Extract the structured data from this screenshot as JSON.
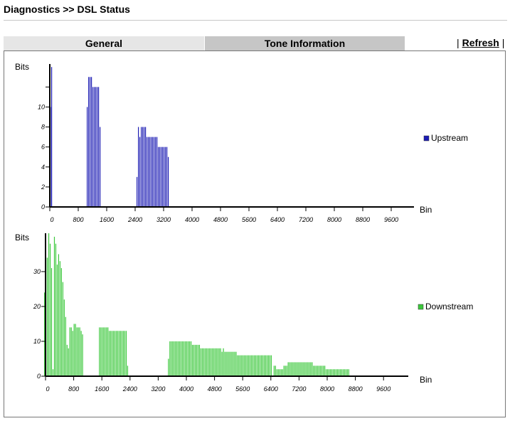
{
  "page_title": "Diagnostics >> DSL Status",
  "tabs": [
    {
      "label": "General",
      "active": false
    },
    {
      "label": "Tone Information",
      "active": true
    }
  ],
  "refresh": {
    "label": "Refresh",
    "sep_left": "|",
    "sep_right": "|"
  },
  "colors": {
    "upstream": "#1c1cb4",
    "downstream": "#3cc83c",
    "axis": "#000000"
  },
  "chart_data": [
    {
      "type": "bar",
      "title": "",
      "ylabel": "Bits",
      "xlabel": "Bin",
      "legend": "Upstream",
      "legend_position": "right",
      "xlim": [
        0,
        10000
      ],
      "ylim": [
        0,
        14.3
      ],
      "x_ticks": [
        0,
        800,
        1600,
        2400,
        3200,
        4000,
        4800,
        5600,
        6400,
        7200,
        8000,
        8800,
        9600
      ],
      "y_ticks": [
        0,
        2,
        4,
        6,
        8,
        10,
        12
      ],
      "y_tick_labels": [
        "0",
        "2",
        "4",
        "6",
        "8",
        "10",
        ""
      ],
      "bin_width": 40,
      "series": [
        {
          "name": "Upstream",
          "bars": [
            [
              5,
              10
            ],
            [
              40,
              14
            ],
            [
              1040,
              10
            ],
            [
              1080,
              13
            ],
            [
              1120,
              13
            ],
            [
              1160,
              13
            ],
            [
              1200,
              12
            ],
            [
              1240,
              12
            ],
            [
              1280,
              12
            ],
            [
              1320,
              12
            ],
            [
              1360,
              12
            ],
            [
              1400,
              8
            ],
            [
              2440,
              3
            ],
            [
              2480,
              8
            ],
            [
              2520,
              7
            ],
            [
              2560,
              8
            ],
            [
              2600,
              8
            ],
            [
              2640,
              8
            ],
            [
              2680,
              8
            ],
            [
              2720,
              7
            ],
            [
              2760,
              7
            ],
            [
              2800,
              7
            ],
            [
              2840,
              7
            ],
            [
              2880,
              7
            ],
            [
              2920,
              7
            ],
            [
              2960,
              7
            ],
            [
              3000,
              7
            ],
            [
              3040,
              6
            ],
            [
              3080,
              6
            ],
            [
              3120,
              6
            ],
            [
              3160,
              6
            ],
            [
              3200,
              6
            ],
            [
              3240,
              6
            ],
            [
              3280,
              6
            ],
            [
              3320,
              5
            ]
          ]
        }
      ]
    },
    {
      "type": "bar",
      "title": "",
      "ylabel": "Bits",
      "xlabel": "Bin",
      "legend": "Downstream",
      "legend_position": "right",
      "xlim": [
        0,
        10000
      ],
      "ylim": [
        0,
        41
      ],
      "x_ticks": [
        0,
        800,
        1600,
        2400,
        3200,
        4000,
        4800,
        5600,
        6400,
        7200,
        8000,
        8800,
        9600
      ],
      "y_ticks": [
        0,
        10,
        20,
        30
      ],
      "bin_width": 40,
      "series": [
        {
          "name": "Downstream",
          "bars": [
            [
              -40,
              24
            ],
            [
              0,
              34
            ],
            [
              40,
              34
            ],
            [
              80,
              41
            ],
            [
              120,
              38
            ],
            [
              160,
              31
            ],
            [
              200,
              2
            ],
            [
              240,
              40
            ],
            [
              280,
              38
            ],
            [
              320,
              32
            ],
            [
              360,
              35
            ],
            [
              400,
              33
            ],
            [
              440,
              31
            ],
            [
              480,
              27
            ],
            [
              520,
              22
            ],
            [
              560,
              17
            ],
            [
              600,
              9
            ],
            [
              640,
              8
            ],
            [
              680,
              14
            ],
            [
              720,
              14
            ],
            [
              760,
              13
            ],
            [
              800,
              15
            ],
            [
              840,
              15
            ],
            [
              880,
              14
            ],
            [
              920,
              14
            ],
            [
              960,
              14
            ],
            [
              1000,
              13
            ],
            [
              1040,
              12
            ],
            [
              1520,
              14
            ],
            [
              1560,
              14
            ],
            [
              1600,
              14
            ],
            [
              1640,
              14
            ],
            [
              1680,
              14
            ],
            [
              1720,
              14
            ],
            [
              1760,
              14
            ],
            [
              1800,
              13
            ],
            [
              1840,
              13
            ],
            [
              1880,
              13
            ],
            [
              1920,
              13
            ],
            [
              1960,
              13
            ],
            [
              2000,
              13
            ],
            [
              2040,
              13
            ],
            [
              2080,
              13
            ],
            [
              2120,
              13
            ],
            [
              2160,
              13
            ],
            [
              2200,
              13
            ],
            [
              2240,
              13
            ],
            [
              2280,
              13
            ],
            [
              2320,
              3
            ],
            [
              3480,
              5
            ],
            [
              3520,
              10
            ],
            [
              3560,
              10
            ],
            [
              3600,
              10
            ],
            [
              3640,
              10
            ],
            [
              3680,
              10
            ],
            [
              3720,
              10
            ],
            [
              3760,
              10
            ],
            [
              3800,
              10
            ],
            [
              3840,
              10
            ],
            [
              3880,
              10
            ],
            [
              3920,
              10
            ],
            [
              3960,
              10
            ],
            [
              4000,
              10
            ],
            [
              4040,
              10
            ],
            [
              4080,
              10
            ],
            [
              4120,
              10
            ],
            [
              4160,
              9
            ],
            [
              4200,
              9
            ],
            [
              4240,
              9
            ],
            [
              4280,
              9
            ],
            [
              4320,
              9
            ],
            [
              4360,
              9
            ],
            [
              4400,
              8
            ],
            [
              4440,
              8
            ],
            [
              4480,
              8
            ],
            [
              4520,
              8
            ],
            [
              4560,
              8
            ],
            [
              4600,
              8
            ],
            [
              4640,
              8
            ],
            [
              4680,
              8
            ],
            [
              4720,
              8
            ],
            [
              4760,
              8
            ],
            [
              4800,
              8
            ],
            [
              4840,
              8
            ],
            [
              4880,
              8
            ],
            [
              4920,
              8
            ],
            [
              4960,
              8
            ],
            [
              5000,
              7
            ],
            [
              5040,
              8
            ],
            [
              5080,
              7
            ],
            [
              5120,
              7
            ],
            [
              5160,
              7
            ],
            [
              5200,
              7
            ],
            [
              5240,
              7
            ],
            [
              5280,
              7
            ],
            [
              5320,
              7
            ],
            [
              5360,
              7
            ],
            [
              5400,
              7
            ],
            [
              5440,
              6
            ],
            [
              5480,
              6
            ],
            [
              5520,
              6
            ],
            [
              5560,
              6
            ],
            [
              5600,
              6
            ],
            [
              5640,
              6
            ],
            [
              5680,
              6
            ],
            [
              5720,
              6
            ],
            [
              5760,
              6
            ],
            [
              5800,
              6
            ],
            [
              5840,
              6
            ],
            [
              5880,
              6
            ],
            [
              5920,
              6
            ],
            [
              5960,
              6
            ],
            [
              6000,
              6
            ],
            [
              6040,
              6
            ],
            [
              6080,
              6
            ],
            [
              6120,
              6
            ],
            [
              6160,
              6
            ],
            [
              6200,
              6
            ],
            [
              6240,
              6
            ],
            [
              6280,
              6
            ],
            [
              6320,
              6
            ],
            [
              6360,
              6
            ],
            [
              6400,
              6
            ],
            [
              6480,
              3
            ],
            [
              6520,
              3
            ],
            [
              6560,
              2
            ],
            [
              6600,
              2
            ],
            [
              6640,
              2
            ],
            [
              6680,
              2
            ],
            [
              6720,
              2
            ],
            [
              6760,
              3
            ],
            [
              6800,
              3
            ],
            [
              6840,
              3
            ],
            [
              6880,
              4
            ],
            [
              6920,
              4
            ],
            [
              6960,
              4
            ],
            [
              7000,
              4
            ],
            [
              7040,
              4
            ],
            [
              7080,
              4
            ],
            [
              7120,
              4
            ],
            [
              7160,
              4
            ],
            [
              7200,
              4
            ],
            [
              7240,
              4
            ],
            [
              7280,
              4
            ],
            [
              7320,
              4
            ],
            [
              7360,
              4
            ],
            [
              7400,
              4
            ],
            [
              7440,
              4
            ],
            [
              7480,
              4
            ],
            [
              7520,
              4
            ],
            [
              7560,
              4
            ],
            [
              7600,
              3
            ],
            [
              7640,
              3
            ],
            [
              7680,
              3
            ],
            [
              7720,
              3
            ],
            [
              7760,
              3
            ],
            [
              7800,
              3
            ],
            [
              7840,
              3
            ],
            [
              7880,
              3
            ],
            [
              7920,
              3
            ],
            [
              7960,
              2
            ],
            [
              8000,
              2
            ],
            [
              8040,
              2
            ],
            [
              8080,
              2
            ],
            [
              8120,
              2
            ],
            [
              8160,
              2
            ],
            [
              8200,
              2
            ],
            [
              8240,
              2
            ],
            [
              8280,
              2
            ],
            [
              8320,
              2
            ],
            [
              8360,
              2
            ],
            [
              8400,
              2
            ],
            [
              8440,
              2
            ],
            [
              8480,
              2
            ],
            [
              8520,
              2
            ],
            [
              8560,
              2
            ],
            [
              8600,
              2
            ]
          ]
        }
      ]
    }
  ]
}
